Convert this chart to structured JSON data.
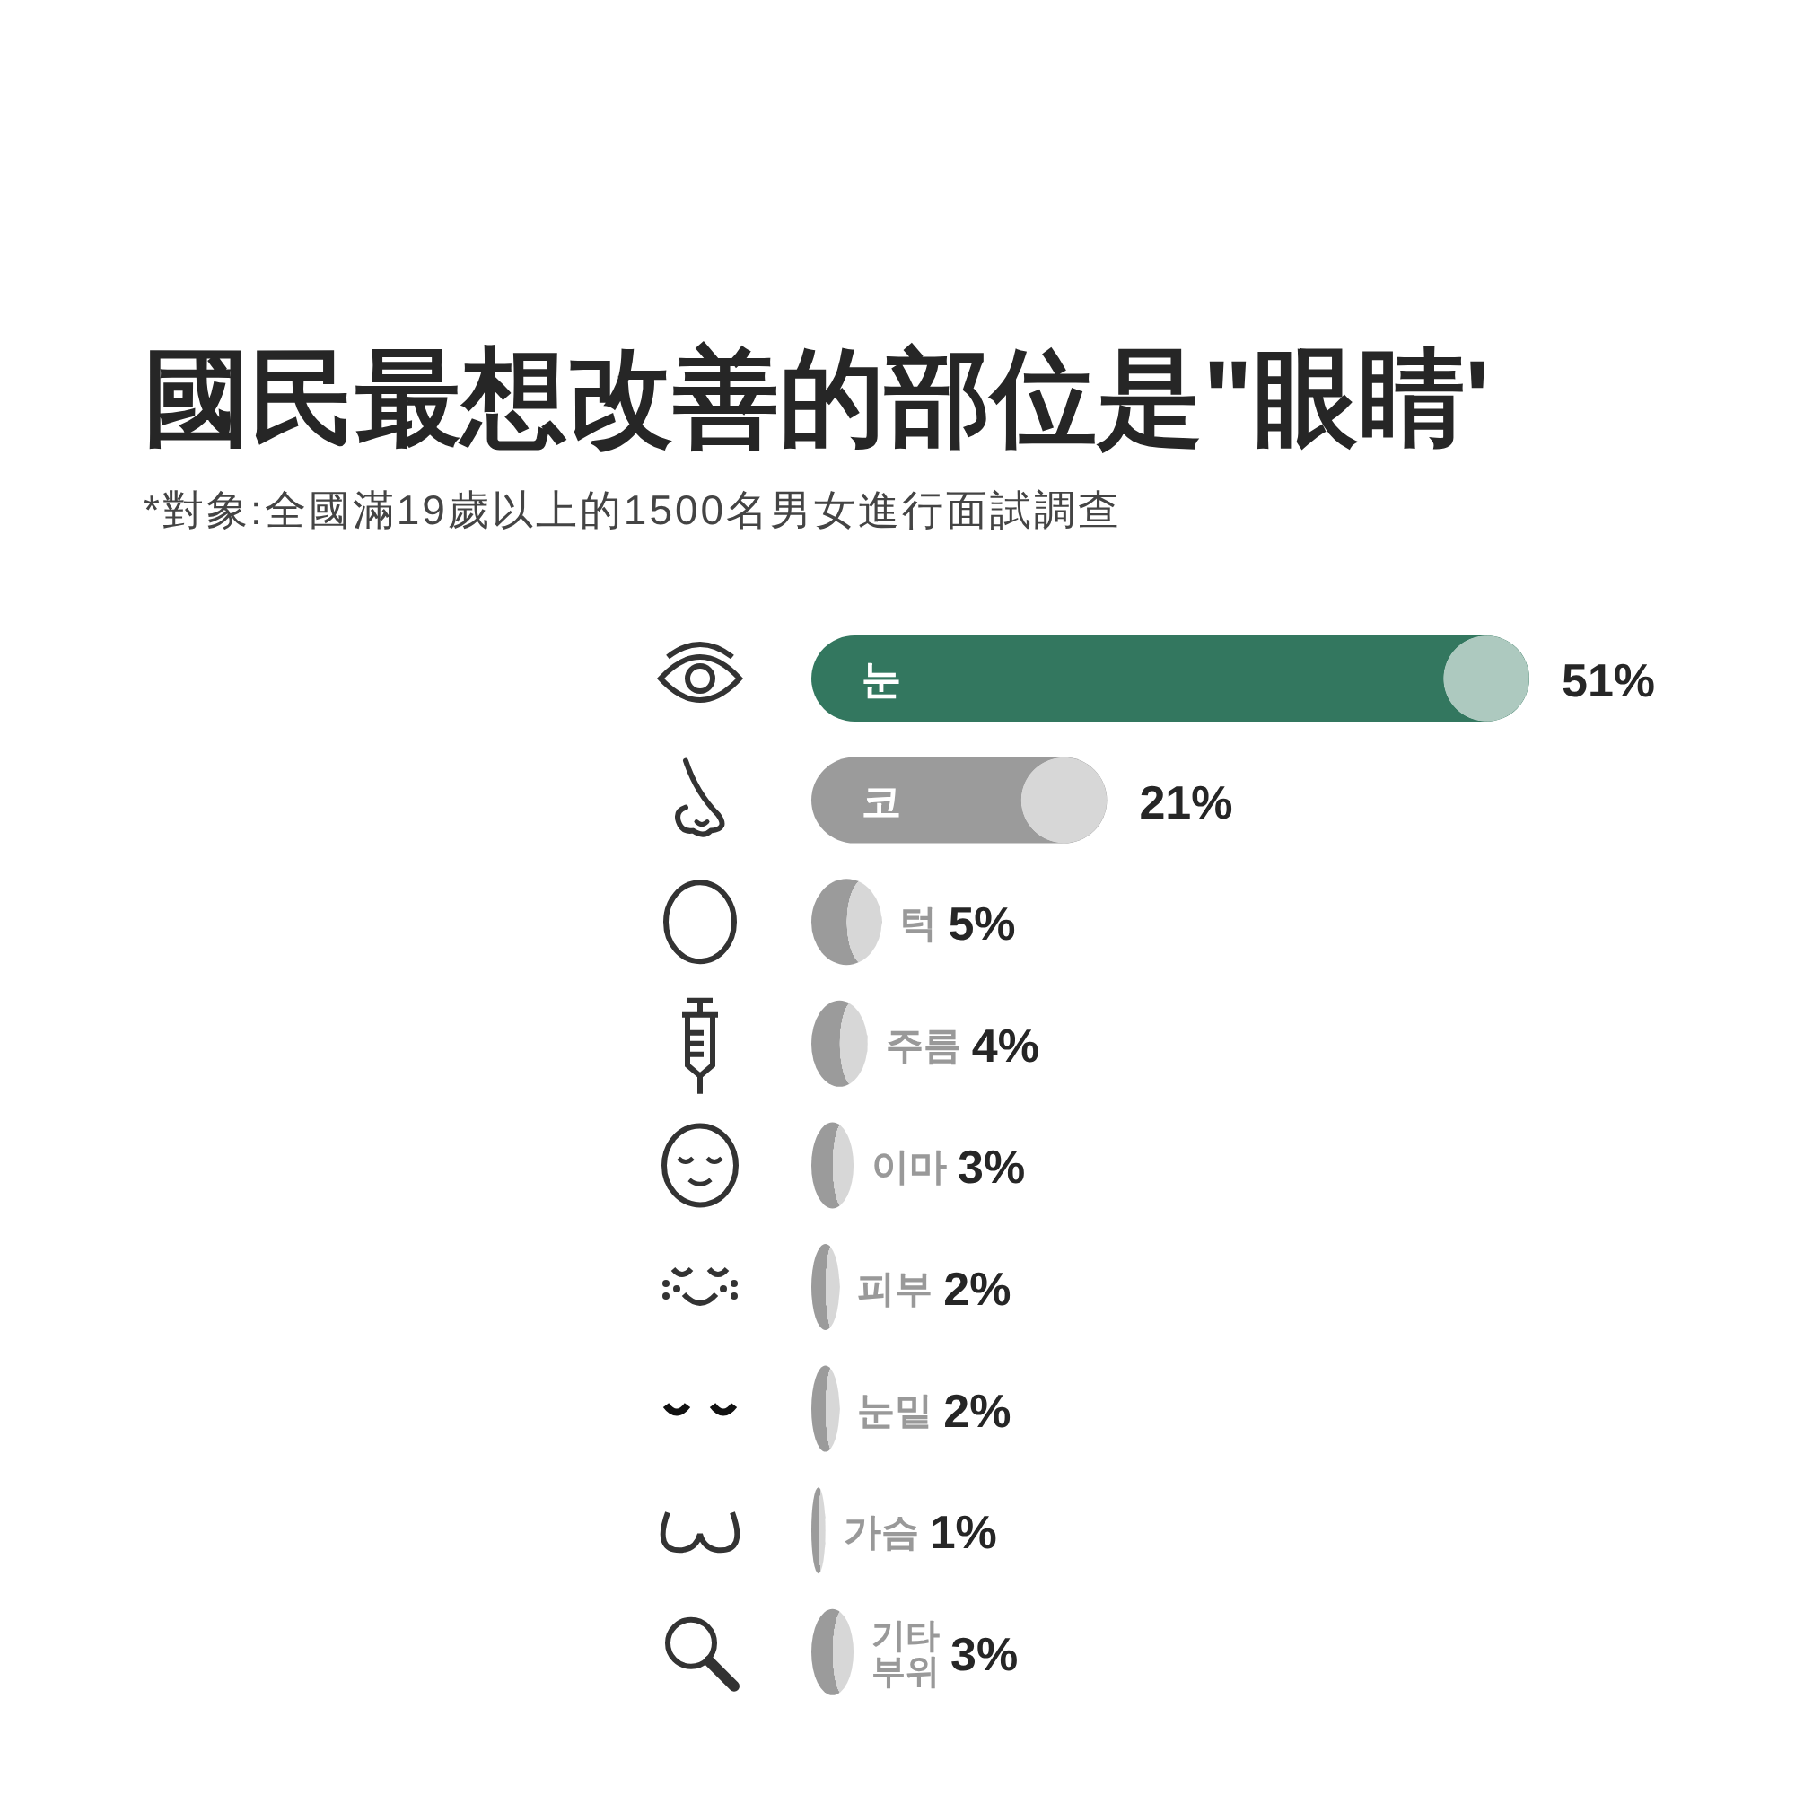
{
  "chart_data": {
    "type": "bar",
    "orientation": "horizontal",
    "title": "國民最想改善的部位是\"眼睛'",
    "subtitle": "*對象:全國滿19歲以上的1500名男女進行面試調查",
    "categories": [
      "눈",
      "코",
      "턱",
      "주름",
      "이마",
      "피부",
      "눈밑",
      "가슴",
      "기타 부위"
    ],
    "values": [
      51,
      21,
      5,
      4,
      3,
      2,
      2,
      1,
      3
    ],
    "value_labels": [
      "51%",
      "21%",
      "5%",
      "4%",
      "3%",
      "2%",
      "2%",
      "1%",
      "3%"
    ],
    "colors": [
      "#33775f",
      "#9b9b9b",
      "#9b9b9b",
      "#9b9b9b",
      "#9b9b9b",
      "#9b9b9b",
      "#9b9b9b",
      "#9b9b9b",
      "#9b9b9b"
    ]
  }
}
